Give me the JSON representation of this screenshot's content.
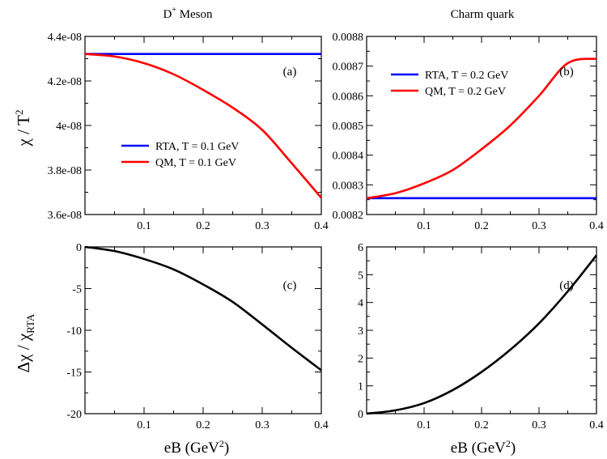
{
  "figure": {
    "col_titles": [
      {
        "main": "D",
        "sup": "+",
        "rest": " Meson"
      },
      {
        "main": "Charm quark",
        "sup": "",
        "rest": ""
      }
    ],
    "ylabel_top": {
      "main": "χ / T",
      "sup": "2"
    },
    "ylabel_bottom": {
      "main": "Δχ / χ",
      "sub": "RTA"
    },
    "xlabel": {
      "main": "eB (GeV",
      "sup": "2",
      "tail": ")"
    }
  },
  "chart_data": [
    {
      "id": "a",
      "type": "line",
      "panel_label": "(a)",
      "xlim": [
        0.0,
        0.4
      ],
      "ylim": [
        3.6e-08,
        4.4e-08
      ],
      "xticks": [
        0.1,
        0.2,
        0.3,
        0.4
      ],
      "xtick_labels": [
        "0.1",
        "0.2",
        "0.3",
        "0.4"
      ],
      "yticks": [
        3.6e-08,
        3.8e-08,
        4e-08,
        4.2e-08,
        4.4e-08
      ],
      "ytick_labels": [
        "3.6e-08",
        "3.8e-08",
        "4e-08",
        "4.2e-08",
        "4.4e-08"
      ],
      "legend": "lower-left-center",
      "series": [
        {
          "name": "RTA, T = 0.1 GeV",
          "color": "#0000ff",
          "x": [
            0.0,
            0.1,
            0.2,
            0.3,
            0.4
          ],
          "y": [
            4.321e-08,
            4.321e-08,
            4.321e-08,
            4.321e-08,
            4.321e-08
          ]
        },
        {
          "name": "QM, T = 0.1 GeV",
          "color": "#ff0000",
          "x": [
            0.0,
            0.05,
            0.1,
            0.15,
            0.2,
            0.25,
            0.3,
            0.35,
            0.4
          ],
          "y": [
            4.321e-08,
            4.31e-08,
            4.28e-08,
            4.23e-08,
            4.16e-08,
            4.08e-08,
            3.98e-08,
            3.83e-08,
            3.675e-08
          ]
        }
      ]
    },
    {
      "id": "b",
      "type": "line",
      "panel_label": "(b)",
      "xlim": [
        0.0,
        0.4
      ],
      "ylim": [
        0.0082,
        0.0088
      ],
      "xticks": [
        0.1,
        0.2,
        0.3,
        0.4
      ],
      "xtick_labels": [
        "0.1",
        "0.2",
        "0.3",
        "0.4"
      ],
      "yticks": [
        0.0082,
        0.0083,
        0.0084,
        0.0085,
        0.0086,
        0.0087,
        0.0088
      ],
      "ytick_labels": [
        "0.0082",
        "0.0083",
        "0.0084",
        "0.0085",
        "0.0086",
        "0.0087",
        "0.0088"
      ],
      "legend": "top-center",
      "series": [
        {
          "name": "RTA, T = 0.2 GeV",
          "color": "#0000ff",
          "x": [
            0.0,
            0.1,
            0.2,
            0.3,
            0.4
          ],
          "y": [
            0.008255,
            0.008255,
            0.008255,
            0.008255,
            0.008255
          ]
        },
        {
          "name": "QM, T = 0.2 GeV",
          "color": "#ff0000",
          "x": [
            0.0,
            0.05,
            0.1,
            0.15,
            0.2,
            0.25,
            0.3,
            0.35,
            0.4
          ],
          "y": [
            0.008255,
            0.008272,
            0.008305,
            0.00835,
            0.00842,
            0.0085,
            0.0086,
            0.00871,
            0.008725
          ]
        }
      ]
    },
    {
      "id": "c",
      "type": "line",
      "panel_label": "(c)",
      "xlim": [
        0.0,
        0.4
      ],
      "ylim": [
        -20,
        0
      ],
      "xticks": [
        0.1,
        0.2,
        0.3,
        0.4
      ],
      "xtick_labels": [
        "0.1",
        "0.2",
        "0.3",
        "0.4"
      ],
      "yticks": [
        -20,
        -15,
        -10,
        -5,
        0
      ],
      "ytick_labels": [
        "-20",
        "-15",
        "-10",
        "-5",
        "0"
      ],
      "series": [
        {
          "name": "",
          "color": "#000000",
          "x": [
            0.0,
            0.05,
            0.1,
            0.15,
            0.2,
            0.25,
            0.3,
            0.35,
            0.4
          ],
          "y": [
            0.0,
            -0.5,
            -1.45,
            -2.7,
            -4.5,
            -6.6,
            -9.3,
            -12.1,
            -14.8
          ]
        }
      ]
    },
    {
      "id": "d",
      "type": "line",
      "panel_label": "(d)",
      "xlim": [
        0.0,
        0.4
      ],
      "ylim": [
        0,
        6
      ],
      "xticks": [
        0.1,
        0.2,
        0.3,
        0.4
      ],
      "xtick_labels": [
        "0.1",
        "0.2",
        "0.3",
        "0.4"
      ],
      "yticks": [
        0,
        1,
        2,
        3,
        4,
        5,
        6
      ],
      "ytick_labels": [
        "0",
        "1",
        "2",
        "3",
        "4",
        "5",
        "6"
      ],
      "series": [
        {
          "name": "",
          "color": "#000000",
          "x": [
            0.0,
            0.05,
            0.1,
            0.15,
            0.2,
            0.25,
            0.3,
            0.35,
            0.4
          ],
          "y": [
            0.0,
            0.12,
            0.38,
            0.85,
            1.5,
            2.3,
            3.25,
            4.4,
            5.7
          ]
        }
      ]
    }
  ]
}
